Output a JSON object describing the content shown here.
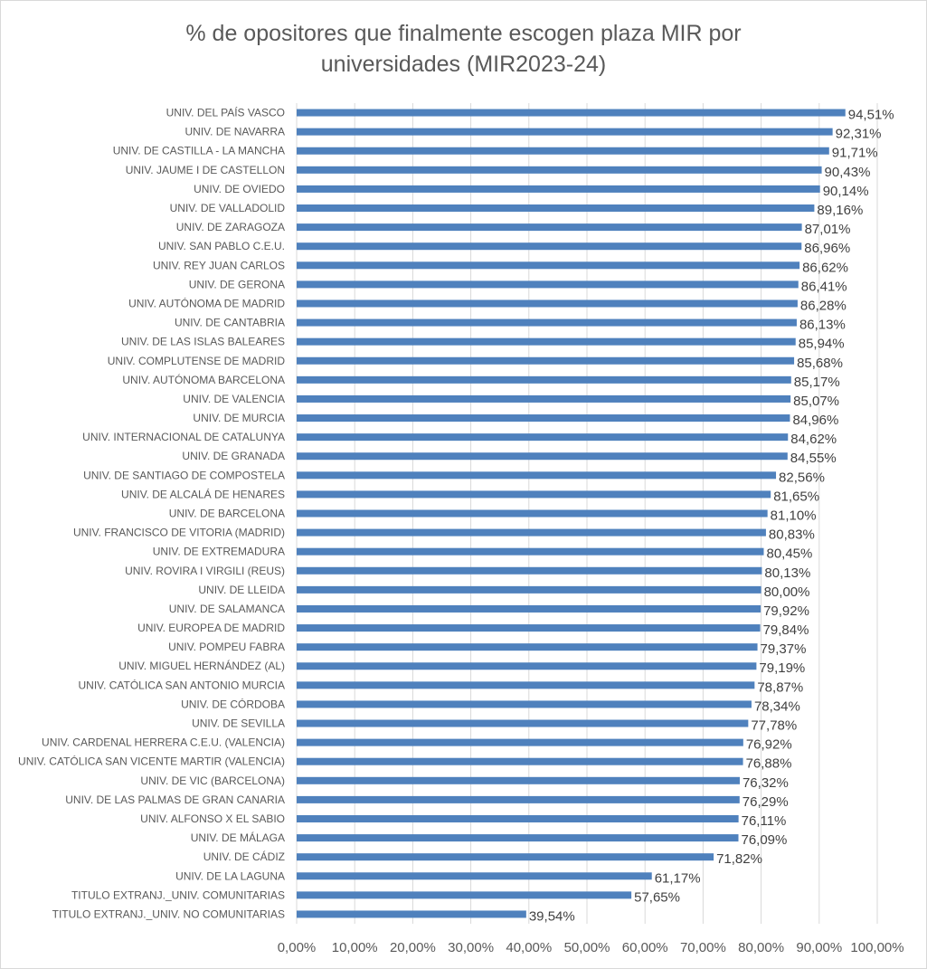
{
  "chart_data": {
    "type": "bar",
    "orientation": "horizontal",
    "title": "% de opositores que finalmente escogen plaza MIR por universidades (MIR2023-24)",
    "title_line1": "% de opositores que finalmente escogen plaza MIR por",
    "title_line2": "universidades (MIR2023-24)",
    "xlim": [
      0,
      100
    ],
    "grid": true,
    "color": "#4f81bd",
    "x_ticks": [
      "0,00%",
      "10,00%",
      "20,00%",
      "30,00%",
      "40,00%",
      "50,00%",
      "60,00%",
      "70,00%",
      "80,00%",
      "90,00%",
      "100,00%"
    ],
    "categories": [
      "UNIV. DEL PAÍS VASCO",
      "UNIV. DE NAVARRA",
      "UNIV. DE CASTILLA - LA MANCHA",
      "UNIV. JAUME I DE CASTELLON",
      "UNIV. DE OVIEDO",
      "UNIV. DE VALLADOLID",
      "UNIV. DE ZARAGOZA",
      "UNIV. SAN PABLO C.E.U.",
      "UNIV. REY JUAN CARLOS",
      "UNIV. DE GERONA",
      "UNIV. AUTÓNOMA DE MADRID",
      "UNIV. DE CANTABRIA",
      "UNIV. DE LAS ISLAS BALEARES",
      "UNIV. COMPLUTENSE DE MADRID",
      "UNIV. AUTÓNOMA BARCELONA",
      "UNIV. DE VALENCIA",
      "UNIV. DE MURCIA",
      "UNIV. INTERNACIONAL DE CATALUNYA",
      "UNIV. DE GRANADA",
      "UNIV. DE SANTIAGO DE COMPOSTELA",
      "UNIV. DE ALCALÁ DE HENARES",
      "UNIV. DE BARCELONA",
      "UNIV. FRANCISCO DE VITORIA (MADRID)",
      "UNIV. DE EXTREMADURA",
      "UNIV. ROVIRA I VIRGILI (REUS)",
      "UNIV. DE LLEIDA",
      "UNIV. DE SALAMANCA",
      "UNIV. EUROPEA DE MADRID",
      "UNIV. POMPEU FABRA",
      "UNIV. MIGUEL HERNÁNDEZ (AL)",
      "UNIV. CATÓLICA SAN ANTONIO MURCIA",
      "UNIV. DE CÓRDOBA",
      "UNIV. DE SEVILLA",
      "UNIV. CARDENAL HERRERA C.E.U. (VALENCIA)",
      "UNIV. CATÓLICA SAN VICENTE MARTIR (VALENCIA)",
      "UNIV. DE VIC (BARCELONA)",
      "UNIV. DE LAS PALMAS DE GRAN CANARIA",
      "UNIV. ALFONSO X EL SABIO",
      "UNIV. DE MÁLAGA",
      "UNIV. DE CÁDIZ",
      "UNIV. DE LA LAGUNA",
      "TITULO EXTRANJ._UNIV. COMUNITARIAS",
      "TITULO EXTRANJ._UNIV. NO COMUNITARIAS"
    ],
    "values": [
      94.51,
      92.31,
      91.71,
      90.43,
      90.14,
      89.16,
      87.01,
      86.96,
      86.62,
      86.41,
      86.28,
      86.13,
      85.94,
      85.68,
      85.17,
      85.07,
      84.96,
      84.62,
      84.55,
      82.56,
      81.65,
      81.1,
      80.83,
      80.45,
      80.13,
      80.0,
      79.92,
      79.84,
      79.37,
      79.19,
      78.87,
      78.34,
      77.78,
      76.92,
      76.88,
      76.32,
      76.29,
      76.11,
      76.09,
      71.82,
      61.17,
      57.65,
      39.54
    ],
    "data_labels": [
      "94,51%",
      "92,31%",
      "91,71%",
      "90,43%",
      "90,14%",
      "89,16%",
      "87,01%",
      "86,96%",
      "86,62%",
      "86,41%",
      "86,28%",
      "86,13%",
      "85,94%",
      "85,68%",
      "85,17%",
      "85,07%",
      "84,96%",
      "84,62%",
      "84,55%",
      "82,56%",
      "81,65%",
      "81,10%",
      "80,83%",
      "80,45%",
      "80,13%",
      "80,00%",
      "79,92%",
      "79,84%",
      "79,37%",
      "79,19%",
      "78,87%",
      "78,34%",
      "77,78%",
      "76,92%",
      "76,88%",
      "76,32%",
      "76,29%",
      "76,11%",
      "76,09%",
      "71,82%",
      "61,17%",
      "57,65%",
      "39,54%"
    ]
  }
}
